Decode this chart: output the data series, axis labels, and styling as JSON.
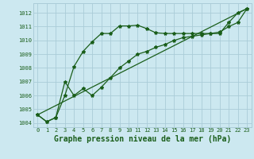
{
  "title": "Graphe pression niveau de la mer (hPa)",
  "bg_color": "#cce8f0",
  "grid_color": "#aaccd8",
  "line_color": "#1a5e1a",
  "xlim": [
    -0.5,
    23.5
  ],
  "ylim": [
    1003.7,
    1012.7
  ],
  "yticks": [
    1004,
    1005,
    1006,
    1007,
    1008,
    1009,
    1010,
    1011,
    1012
  ],
  "xticks": [
    0,
    1,
    2,
    3,
    4,
    5,
    6,
    7,
    8,
    9,
    10,
    11,
    12,
    13,
    14,
    15,
    16,
    17,
    18,
    19,
    20,
    21,
    22,
    23
  ],
  "series1_x": [
    0,
    1,
    2,
    3,
    4,
    5,
    6,
    7,
    8,
    9,
    10,
    11,
    12,
    13,
    14,
    15,
    16,
    17,
    18,
    19,
    20,
    21,
    22,
    23
  ],
  "series1_y": [
    1004.6,
    1004.1,
    1004.4,
    1006.0,
    1008.1,
    1009.2,
    1009.9,
    1010.5,
    1010.5,
    1011.05,
    1011.05,
    1011.1,
    1010.85,
    1010.55,
    1010.5,
    1010.5,
    1010.5,
    1010.5,
    1010.5,
    1010.5,
    1010.5,
    1011.3,
    1012.0,
    1012.3
  ],
  "series2_x": [
    0,
    1,
    2,
    3,
    4,
    5,
    6,
    7,
    8,
    9,
    10,
    11,
    12,
    13,
    14,
    15,
    16,
    17,
    18,
    19,
    20,
    21,
    22,
    23
  ],
  "series2_y": [
    1004.6,
    1004.1,
    1004.4,
    1007.0,
    1006.0,
    1006.5,
    1006.0,
    1006.6,
    1007.3,
    1008.0,
    1008.5,
    1009.0,
    1009.2,
    1009.5,
    1009.7,
    1010.0,
    1010.2,
    1010.3,
    1010.4,
    1010.5,
    1010.6,
    1011.0,
    1011.3,
    1012.3
  ],
  "series3_x": [
    0,
    23
  ],
  "series3_y": [
    1004.6,
    1012.3
  ],
  "marker": "*",
  "markersize": 3,
  "linewidth": 0.9,
  "title_fontsize": 7,
  "tick_fontsize": 5
}
